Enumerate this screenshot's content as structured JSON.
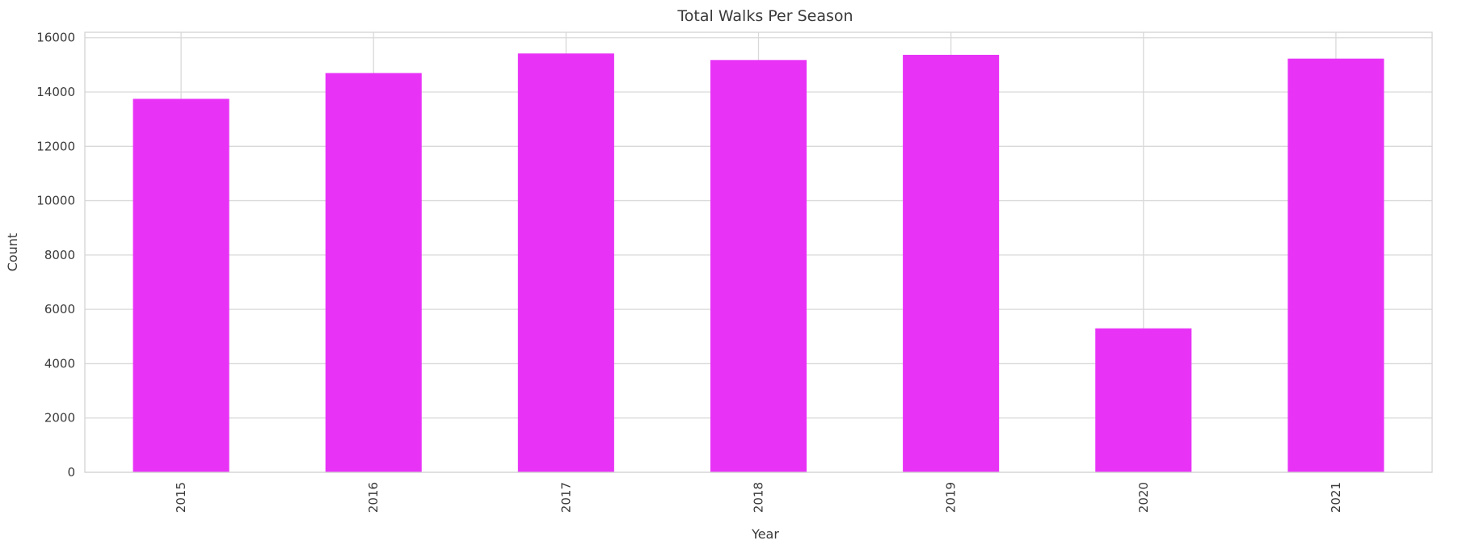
{
  "chart_data": {
    "type": "bar",
    "title": "Total Walks Per Season",
    "xlabel": "Year",
    "ylabel": "Count",
    "categories": [
      "2015",
      "2016",
      "2017",
      "2018",
      "2019",
      "2020",
      "2021"
    ],
    "values": [
      13750,
      14700,
      15420,
      15180,
      15370,
      5300,
      15230
    ],
    "ylim": [
      0,
      16200
    ],
    "yticks": [
      0,
      2000,
      4000,
      6000,
      8000,
      10000,
      12000,
      14000,
      16000
    ],
    "bar_color": "#e833f7",
    "grid": true,
    "x_tick_rotation": "vertical"
  }
}
